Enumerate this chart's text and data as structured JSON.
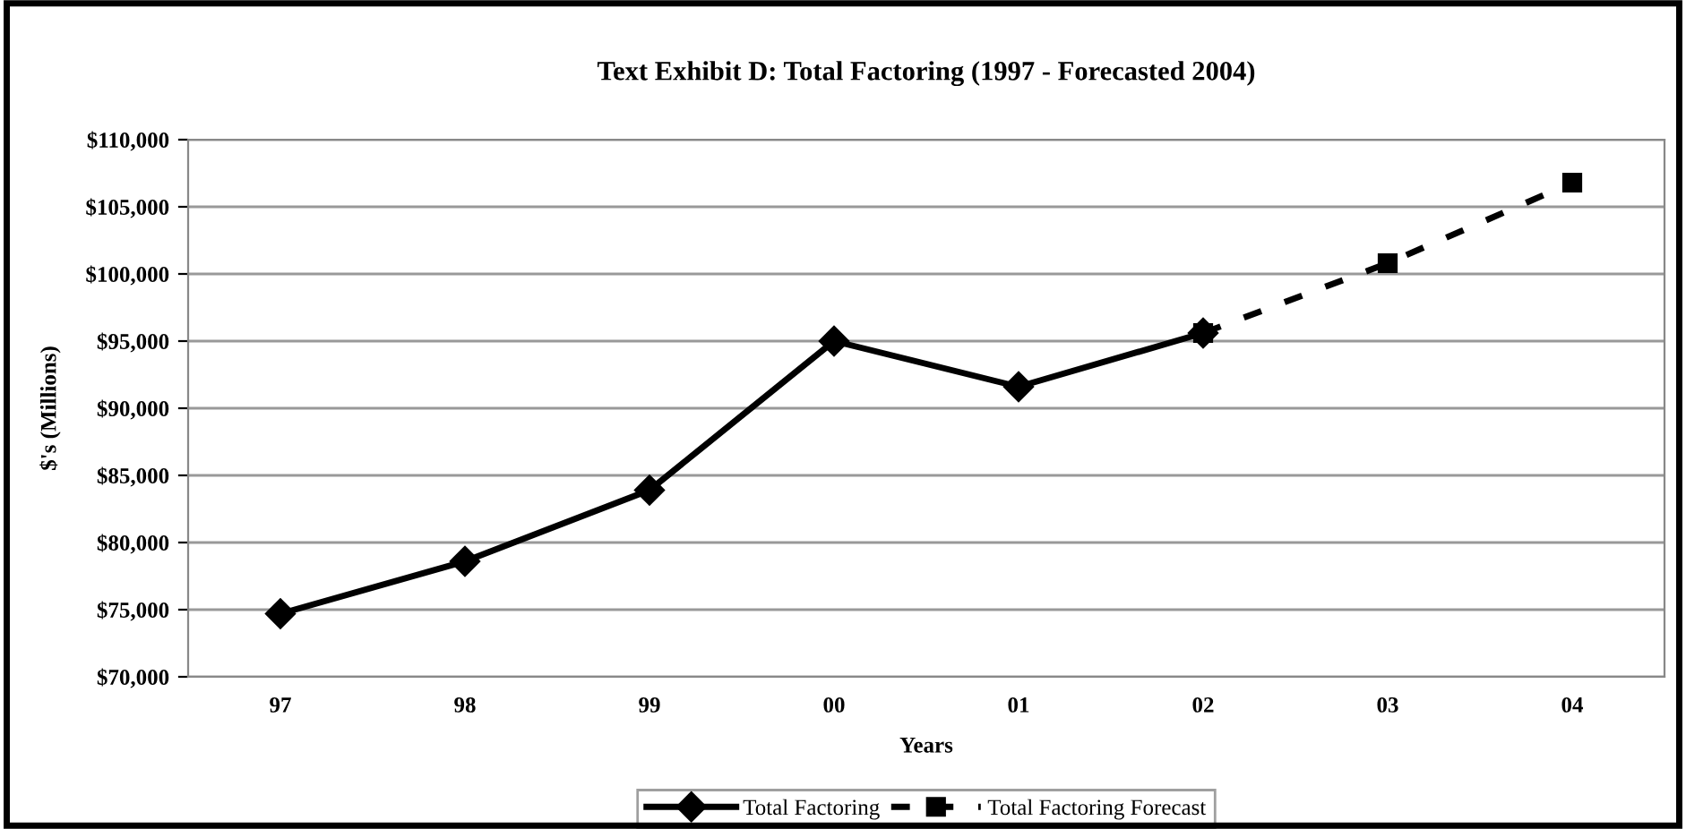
{
  "chart_data": {
    "type": "line",
    "title": "Text Exhibit D: Total Factoring (1997 - Forecasted 2004)",
    "xlabel": "Years",
    "ylabel": "$'s (Millions)",
    "categories": [
      "97",
      "98",
      "99",
      "00",
      "01",
      "02",
      "03",
      "04"
    ],
    "series": [
      {
        "name": "Total Factoring",
        "color": "#000000",
        "marker": "diamond",
        "line_style": "solid",
        "values": [
          74700,
          78600,
          83900,
          95000,
          91600,
          95600,
          null,
          null
        ]
      },
      {
        "name": "Total Factoring Forecast",
        "color": "#000000",
        "marker": "square",
        "line_style": "dashed",
        "values": [
          null,
          null,
          null,
          null,
          null,
          95600,
          100800,
          106800
        ]
      }
    ],
    "ylim": [
      70000,
      110000
    ],
    "yticks": [
      {
        "value": 70000,
        "label": "$70,000"
      },
      {
        "value": 75000,
        "label": "$75,000"
      },
      {
        "value": 80000,
        "label": "$80,000"
      },
      {
        "value": 85000,
        "label": "$85,000"
      },
      {
        "value": 90000,
        "label": "$90,000"
      },
      {
        "value": 95000,
        "label": "$95,000"
      },
      {
        "value": 100000,
        "label": "$100,000"
      },
      {
        "value": 105000,
        "label": "$105,000"
      },
      {
        "value": 110000,
        "label": "$110,000"
      }
    ],
    "grid": "y",
    "legend": "bottom"
  }
}
